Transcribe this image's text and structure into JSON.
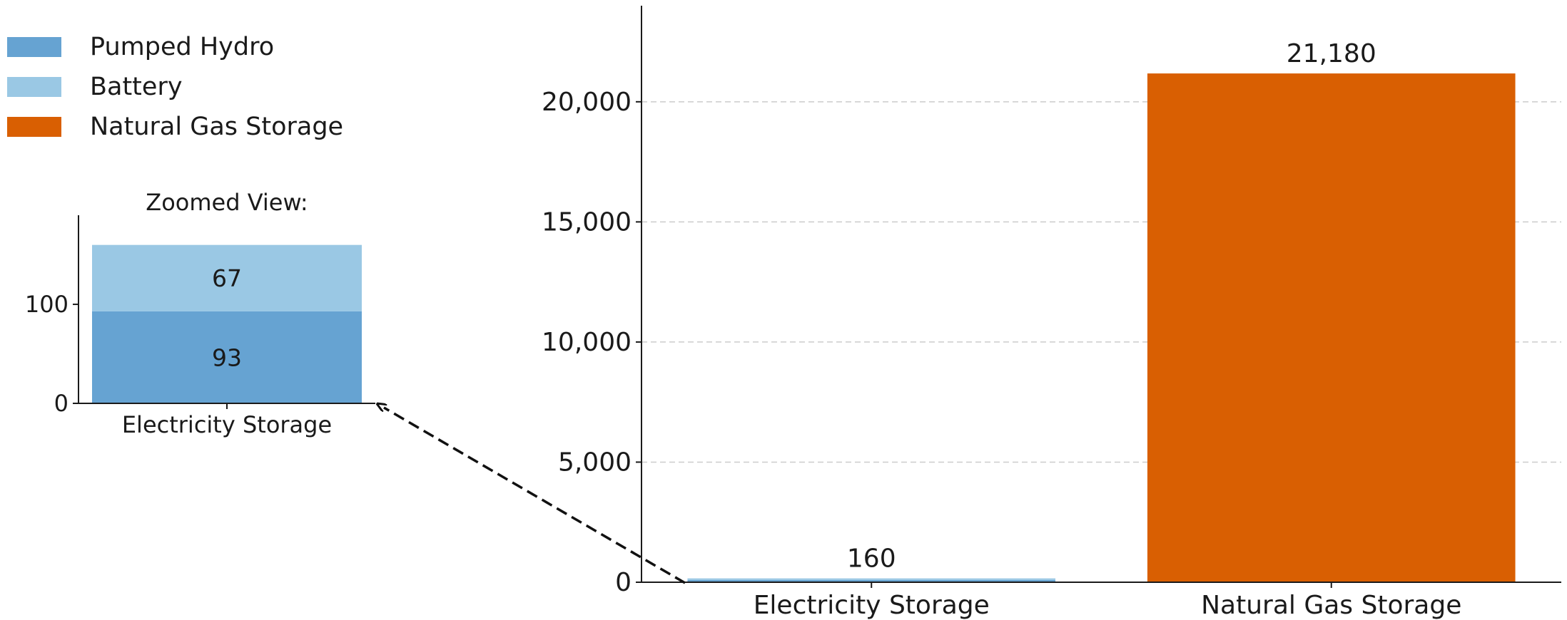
{
  "colors": {
    "pumped_hydro": "#66a3d2",
    "battery": "#9ac8e4",
    "natural_gas": "#d95f02",
    "axis": "#1a1a1a",
    "grid": "#cccccc",
    "arrow": "#111111"
  },
  "legend": [
    {
      "label": "Pumped Hydro",
      "color_key": "pumped_hydro"
    },
    {
      "label": "Battery",
      "color_key": "battery"
    },
    {
      "label": "Natural Gas Storage",
      "color_key": "natural_gas"
    }
  ],
  "chart_data": [
    {
      "id": "main",
      "type": "bar",
      "title": "",
      "xlabel": "",
      "ylabel": "",
      "categories": [
        "Electricity Storage",
        "Natural Gas Storage"
      ],
      "series": [
        {
          "name": "Pumped Hydro",
          "values": [
            93,
            0
          ]
        },
        {
          "name": "Battery",
          "values": [
            67,
            0
          ]
        },
        {
          "name": "Natural Gas Storage",
          "values": [
            0,
            21180
          ]
        }
      ],
      "totals": [
        160,
        21180
      ],
      "total_labels": [
        "160",
        "21,180"
      ],
      "ylim": [
        0,
        24000
      ],
      "yticks": [
        0,
        5000,
        10000,
        15000,
        20000
      ],
      "ytick_labels": [
        "0",
        "5,000",
        "10,000",
        "15,000",
        "20,000"
      ],
      "grid": true,
      "legend_position": "top-left"
    },
    {
      "id": "zoom",
      "type": "bar",
      "title": "Zoomed View:",
      "categories": [
        "Electricity Storage"
      ],
      "series": [
        {
          "name": "Pumped Hydro",
          "values": [
            93
          ]
        },
        {
          "name": "Battery",
          "values": [
            67
          ]
        }
      ],
      "segment_labels": [
        "93",
        "67"
      ],
      "ylim": [
        0,
        190
      ],
      "yticks": [
        0,
        100
      ],
      "ytick_labels": [
        "0",
        "100"
      ],
      "grid": false
    }
  ]
}
